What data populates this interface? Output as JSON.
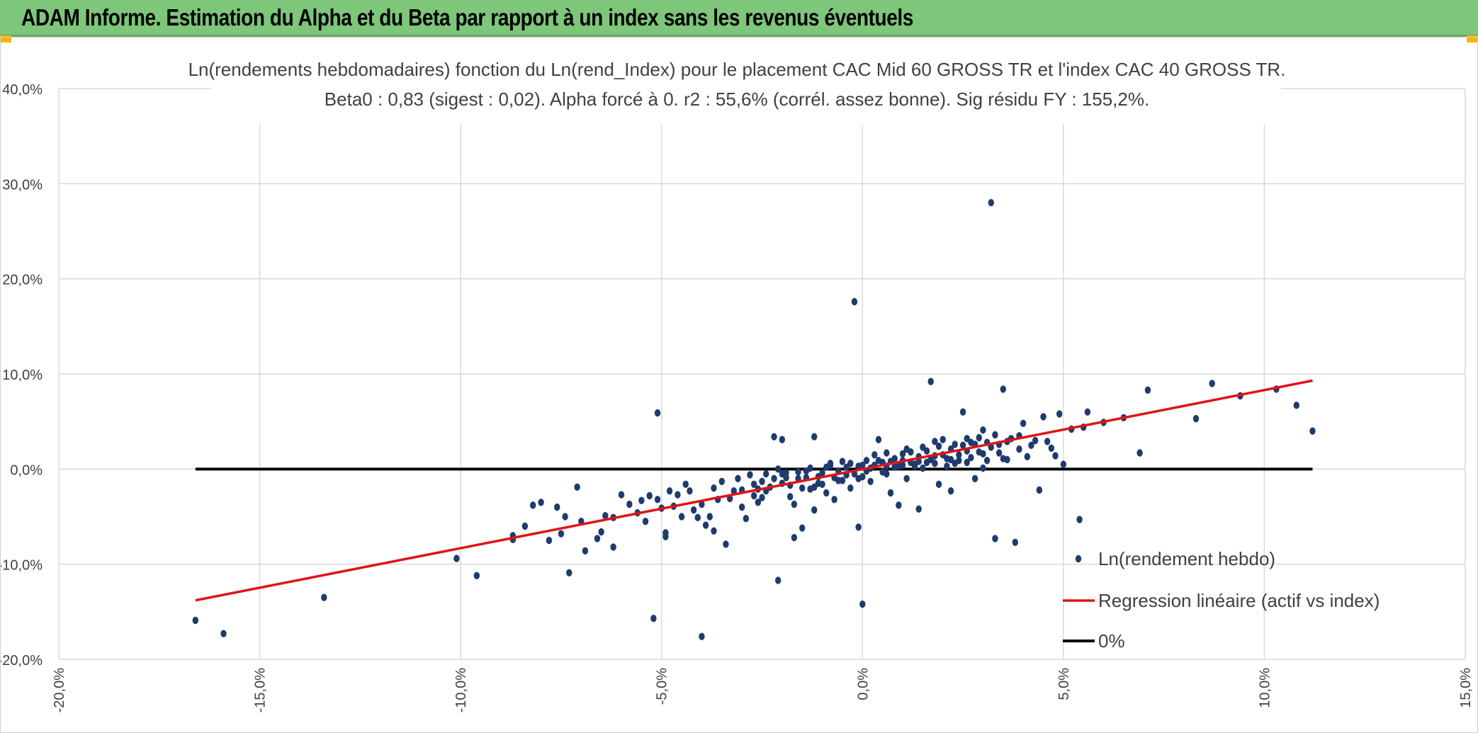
{
  "banner": {
    "title": "ADAM Informe. Estimation du Alpha et du Beta par rapport à un index sans les revenus éventuels",
    "color": "#7dc67a"
  },
  "chart_data": {
    "type": "scatter",
    "title": "Ln(rendements hebdomadaires) fonction du Ln(rend_Index) pour le placement CAC Mid 60 GROSS TR et l'index CAC 40 GROSS TR.",
    "subtitle": "Beta0 : 0,83 (sigest : 0,02). Alpha forcé à 0. r2 : 55,6% (corrél. assez bonne). Sig résidu FY : 155,2%.",
    "xlabel": "",
    "ylabel": "",
    "xlim": [
      -20,
      15
    ],
    "ylim": [
      -20,
      40
    ],
    "x_ticks": [
      -20,
      -15,
      -10,
      -5,
      0,
      5,
      10,
      15
    ],
    "y_ticks": [
      -20,
      -10,
      0,
      10,
      20,
      30,
      40
    ],
    "x_tick_labels": [
      "-20,0%",
      "-15,0%",
      "-10,0%",
      "-5,0%",
      "0,0%",
      "5,0%",
      "10,0%",
      "15,0%"
    ],
    "y_tick_labels": [
      "-20,0%",
      "-10,0%",
      "0,0%",
      "10,0%",
      "20,0%",
      "30,0%",
      "40,0%"
    ],
    "grid": true,
    "legend_position": "bottom-right",
    "series": [
      {
        "name": "Ln(rendement hebdo)",
        "kind": "scatter",
        "color": "#1f3b6e",
        "points": [
          [
            -16.6,
            -15.9
          ],
          [
            -15.9,
            -17.3
          ],
          [
            -13.4,
            -13.5
          ],
          [
            -10.1,
            -9.4
          ],
          [
            -9.6,
            -11.2
          ],
          [
            -8.7,
            -7.4
          ],
          [
            -8.7,
            -7.0
          ],
          [
            -8.4,
            -6.0
          ],
          [
            -8.2,
            -3.8
          ],
          [
            -8.0,
            -3.5
          ],
          [
            -7.8,
            -7.5
          ],
          [
            -7.6,
            -4.0
          ],
          [
            -7.5,
            -6.8
          ],
          [
            -7.4,
            -5.0
          ],
          [
            -7.3,
            -10.9
          ],
          [
            -7.1,
            -1.9
          ],
          [
            -7.0,
            -5.5
          ],
          [
            -6.9,
            -8.6
          ],
          [
            -6.6,
            -7.3
          ],
          [
            -6.5,
            -6.6
          ],
          [
            -6.4,
            -4.9
          ],
          [
            -6.2,
            -8.2
          ],
          [
            -6.2,
            -5.1
          ],
          [
            -6.0,
            -2.7
          ],
          [
            -5.8,
            -3.7
          ],
          [
            -5.6,
            -4.6
          ],
          [
            -5.5,
            -3.3
          ],
          [
            -5.4,
            -5.5
          ],
          [
            -5.3,
            -2.8
          ],
          [
            -5.2,
            -15.7
          ],
          [
            -5.1,
            5.9
          ],
          [
            -5.1,
            -3.2
          ],
          [
            -5.0,
            -4.1
          ],
          [
            -4.9,
            -6.7
          ],
          [
            -4.9,
            -7.1
          ],
          [
            -4.8,
            -2.3
          ],
          [
            -4.7,
            -3.9
          ],
          [
            -4.6,
            -2.7
          ],
          [
            -4.5,
            -5.0
          ],
          [
            -4.4,
            -1.6
          ],
          [
            -4.3,
            -2.3
          ],
          [
            -4.2,
            -4.3
          ],
          [
            -4.1,
            -5.1
          ],
          [
            -4.0,
            -17.6
          ],
          [
            -4.0,
            -3.7
          ],
          [
            -3.9,
            -5.9
          ],
          [
            -3.8,
            -5.0
          ],
          [
            -3.7,
            -6.5
          ],
          [
            -3.7,
            -2.0
          ],
          [
            -3.6,
            -3.2
          ],
          [
            -3.5,
            -1.3
          ],
          [
            -3.4,
            -7.9
          ],
          [
            -3.3,
            -3.1
          ],
          [
            -3.2,
            -2.3
          ],
          [
            -3.1,
            -1.0
          ],
          [
            -3.0,
            -4.0
          ],
          [
            -2.9,
            -5.2
          ],
          [
            -2.8,
            -0.6
          ],
          [
            -2.7,
            -2.8
          ],
          [
            -2.6,
            -2.1
          ],
          [
            -2.6,
            -3.5
          ],
          [
            -2.5,
            -1.3
          ],
          [
            -2.4,
            -0.5
          ],
          [
            -2.3,
            -1.9
          ],
          [
            -2.2,
            3.4
          ],
          [
            -2.1,
            -11.7
          ],
          [
            -2.0,
            3.1
          ],
          [
            -2.0,
            -1.5
          ],
          [
            -1.9,
            -0.4
          ],
          [
            -1.8,
            -2.9
          ],
          [
            -1.7,
            -3.7
          ],
          [
            -1.7,
            -7.2
          ],
          [
            -1.6,
            -1.0
          ],
          [
            -1.5,
            -6.2
          ],
          [
            -1.4,
            -0.2
          ],
          [
            -1.3,
            -2.1
          ],
          [
            -1.2,
            3.4
          ],
          [
            -1.2,
            -4.3
          ],
          [
            -1.1,
            -0.8
          ],
          [
            -1.0,
            -1.6
          ],
          [
            -0.9,
            -2.5
          ],
          [
            -0.8,
            0.4
          ],
          [
            -0.7,
            -3.2
          ],
          [
            -0.6,
            -1.2
          ],
          [
            -0.5,
            0.8
          ],
          [
            -0.4,
            -0.6
          ],
          [
            -0.3,
            -2.0
          ],
          [
            -0.2,
            17.6
          ],
          [
            -0.1,
            -6.1
          ],
          [
            0.0,
            -14.2
          ],
          [
            -0.1,
            0.3
          ],
          [
            0.0,
            -0.8
          ],
          [
            0.1,
            0.9
          ],
          [
            0.2,
            -1.3
          ],
          [
            0.3,
            0.4
          ],
          [
            0.4,
            3.1
          ],
          [
            0.5,
            -0.3
          ],
          [
            0.6,
            1.7
          ],
          [
            0.7,
            -2.5
          ],
          [
            0.8,
            0.2
          ],
          [
            0.9,
            -3.8
          ],
          [
            1.0,
            0.9
          ],
          [
            1.1,
            -1.0
          ],
          [
            1.2,
            1.8
          ],
          [
            1.3,
            0.5
          ],
          [
            1.4,
            -4.2
          ],
          [
            1.5,
            2.3
          ],
          [
            1.6,
            0.7
          ],
          [
            1.7,
            9.2
          ],
          [
            1.8,
            1.4
          ],
          [
            1.9,
            -1.6
          ],
          [
            2.0,
            3.1
          ],
          [
            2.1,
            1.1
          ],
          [
            2.2,
            -2.3
          ],
          [
            2.3,
            2.6
          ],
          [
            2.4,
            1.5
          ],
          [
            2.5,
            6.0
          ],
          [
            2.6,
            0.7
          ],
          [
            2.7,
            2.8
          ],
          [
            2.8,
            -1.0
          ],
          [
            2.9,
            1.8
          ],
          [
            3.0,
            4.1
          ],
          [
            3.1,
            0.9
          ],
          [
            3.2,
            28.0
          ],
          [
            3.3,
            -7.3
          ],
          [
            3.4,
            2.6
          ],
          [
            3.5,
            8.4
          ],
          [
            3.6,
            1.0
          ],
          [
            3.7,
            3.2
          ],
          [
            3.8,
            -7.7
          ],
          [
            3.9,
            2.1
          ],
          [
            4.0,
            4.8
          ],
          [
            4.1,
            1.3
          ],
          [
            4.2,
            2.5
          ],
          [
            4.4,
            -2.2
          ],
          [
            4.5,
            5.5
          ],
          [
            4.6,
            2.9
          ],
          [
            4.8,
            1.4
          ],
          [
            4.9,
            5.8
          ],
          [
            5.0,
            0.5
          ],
          [
            5.2,
            4.2
          ],
          [
            5.4,
            -5.3
          ],
          [
            5.5,
            4.4
          ],
          [
            5.6,
            6.0
          ],
          [
            6.0,
            4.9
          ],
          [
            6.5,
            5.4
          ],
          [
            6.9,
            1.7
          ],
          [
            7.1,
            8.3
          ],
          [
            8.3,
            5.3
          ],
          [
            8.7,
            9.0
          ],
          [
            9.4,
            7.7
          ],
          [
            10.3,
            8.4
          ],
          [
            10.8,
            6.7
          ],
          [
            11.2,
            4.0
          ],
          [
            -1.9,
            -0.9
          ],
          [
            -1.6,
            -0.3
          ],
          [
            -1.3,
            0.1
          ],
          [
            -1.0,
            -0.4
          ],
          [
            -0.8,
            0.6
          ],
          [
            -0.6,
            -0.2
          ],
          [
            -0.4,
            0.2
          ],
          [
            -0.2,
            -0.5
          ],
          [
            0.0,
            0.4
          ],
          [
            0.2,
            0.1
          ],
          [
            0.4,
            0.9
          ],
          [
            0.6,
            0.3
          ],
          [
            0.8,
            1.1
          ],
          [
            1.0,
            0.4
          ],
          [
            1.2,
            0.7
          ],
          [
            1.4,
            1.3
          ],
          [
            1.6,
            1.9
          ],
          [
            1.8,
            0.6
          ],
          [
            2.0,
            1.5
          ],
          [
            2.2,
            2.1
          ],
          [
            2.4,
            0.9
          ],
          [
            2.6,
            1.9
          ],
          [
            2.8,
            2.6
          ],
          [
            3.0,
            1.6
          ],
          [
            3.2,
            2.3
          ],
          [
            3.4,
            1.7
          ],
          [
            3.6,
            2.9
          ],
          [
            -2.2,
            -1.0
          ],
          [
            -1.8,
            -1.7
          ],
          [
            -1.4,
            -0.9
          ],
          [
            -1.1,
            -1.5
          ],
          [
            -0.7,
            -0.9
          ],
          [
            -0.3,
            0.6
          ],
          [
            0.1,
            -0.2
          ],
          [
            0.5,
            0.7
          ],
          [
            0.9,
            0.3
          ],
          [
            1.3,
            0.3
          ],
          [
            1.7,
            1.0
          ],
          [
            2.1,
            0.3
          ],
          [
            2.5,
            2.5
          ],
          [
            2.9,
            3.3
          ],
          [
            3.3,
            3.6
          ],
          [
            -2.4,
            -2.3
          ],
          [
            -2.0,
            -0.5
          ],
          [
            -1.5,
            -2.0
          ],
          [
            -0.9,
            0.2
          ],
          [
            -0.5,
            -1.2
          ],
          [
            0.3,
            1.5
          ],
          [
            0.7,
            0.8
          ],
          [
            1.1,
            2.1
          ],
          [
            1.5,
            0.1
          ],
          [
            1.9,
            2.4
          ],
          [
            2.3,
            0.6
          ],
          [
            2.7,
            1.2
          ],
          [
            3.1,
            2.8
          ],
          [
            -3.0,
            -2.2
          ],
          [
            -2.7,
            -1.6
          ],
          [
            -2.5,
            -3.0
          ],
          [
            -2.1,
            0.0
          ],
          [
            -1.2,
            -1.9
          ],
          [
            -0.1,
            -1.0
          ],
          [
            0.6,
            -0.5
          ],
          [
            1.0,
            1.6
          ],
          [
            1.4,
            0.8
          ],
          [
            1.8,
            2.9
          ],
          [
            2.2,
            1.0
          ],
          [
            2.6,
            3.2
          ],
          [
            3.0,
            0.1
          ],
          [
            3.5,
            1.1
          ],
          [
            3.9,
            3.5
          ],
          [
            4.3,
            3.0
          ],
          [
            4.7,
            2.2
          ]
        ]
      },
      {
        "name": "Regression linéaire (actif vs index)",
        "kind": "line",
        "color": "#e11414",
        "x": [
          -16.6,
          11.2
        ],
        "y": [
          -13.8,
          9.3
        ]
      },
      {
        "name": "0%",
        "kind": "line",
        "color": "#000000",
        "x": [
          -16.6,
          11.2
        ],
        "y": [
          0,
          0
        ]
      }
    ]
  }
}
